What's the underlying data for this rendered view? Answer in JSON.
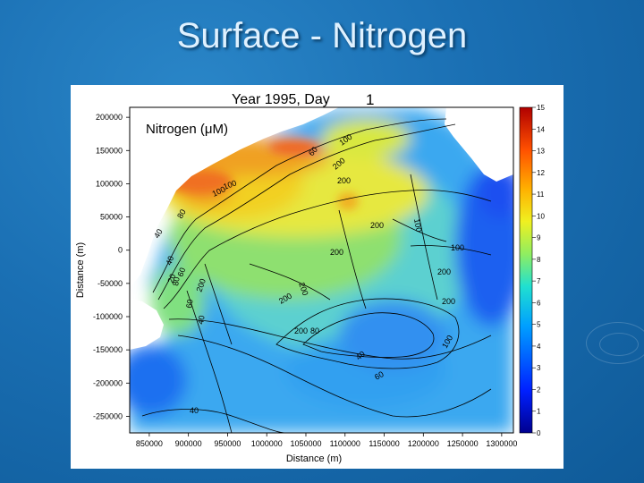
{
  "slide": {
    "title": "Surface - Nitrogen"
  },
  "chart_data": {
    "type": "heatmap",
    "title": "Year 1995,  Day",
    "day_value": "1",
    "inset_label": "Nitrogen (μM)",
    "xlabel": "Distance (m)",
    "ylabel": "Distance (m)",
    "xlim": [
      825000,
      1315000
    ],
    "ylim": [
      -275000,
      215000
    ],
    "x_ticks": [
      "850000",
      "900000",
      "950000",
      "1000000",
      "1050000",
      "1100000",
      "1150000",
      "1200000",
      "1250000",
      "1300000"
    ],
    "y_ticks": [
      "200000",
      "150000",
      "100000",
      "50000",
      "0",
      "-50000",
      "-100000",
      "-150000",
      "-200000",
      "-250000"
    ],
    "colorbar": {
      "min": 0,
      "max": 15,
      "ticks": [
        "0",
        "1",
        "2",
        "3",
        "4",
        "5",
        "6",
        "7",
        "8",
        "9",
        "10",
        "11",
        "12",
        "13",
        "14",
        "15"
      ]
    },
    "contour_labels": [
      "100",
      "100",
      "200",
      "60",
      "40",
      "80",
      "20",
      "100",
      "200",
      "100",
      "200",
      "200",
      "200",
      "200",
      "200",
      "200",
      "100",
      "40",
      "60",
      "40",
      "60",
      "80",
      "100",
      "200",
      "200",
      "80",
      "40",
      "60",
      "40"
    ],
    "colors": {
      "background_slide": "#1a6fb3",
      "land": "#ffffff"
    }
  }
}
